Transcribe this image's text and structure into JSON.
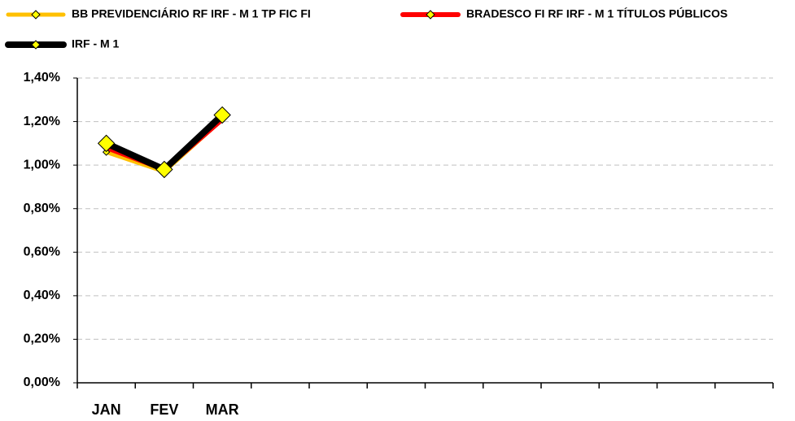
{
  "chart_data": {
    "type": "line",
    "categories": [
      "JAN",
      "FEV",
      "MAR",
      null,
      null,
      null,
      null,
      null,
      null,
      null,
      null,
      null
    ],
    "series": [
      {
        "name": "BB PREVIDENCIÁRIO RF IRF - M 1 TP FIC FI",
        "color": "#ffc000",
        "values": [
          1.06,
          0.97,
          1.21,
          null,
          null,
          null,
          null,
          null,
          null,
          null,
          null,
          null
        ]
      },
      {
        "name": "BRADESCO FI RF IRF - M 1 TÍTULOS PÚBLICOS",
        "color": "#ff0000",
        "values": [
          1.08,
          0.98,
          1.21,
          null,
          null,
          null,
          null,
          null,
          null,
          null,
          null,
          null
        ]
      },
      {
        "name": "IRF - M 1",
        "color": "#000000",
        "values": [
          1.1,
          0.98,
          1.23,
          null,
          null,
          null,
          null,
          null,
          null,
          null,
          null,
          null
        ]
      }
    ],
    "marker_color": "#ffff00",
    "ylim": [
      0,
      1.4
    ],
    "yticks": [
      {
        "value": 0,
        "label": "0,00%"
      },
      {
        "value": 0.2,
        "label": "0,20%"
      },
      {
        "value": 0.4,
        "label": "0,40%"
      },
      {
        "value": 0.6,
        "label": "0,60%"
      },
      {
        "value": 0.8,
        "label": "0,80%"
      },
      {
        "value": 1.0,
        "label": "1,00%"
      },
      {
        "value": 1.2,
        "label": "1,20%"
      },
      {
        "value": 1.4,
        "label": "1,40%"
      }
    ],
    "grid": true
  }
}
